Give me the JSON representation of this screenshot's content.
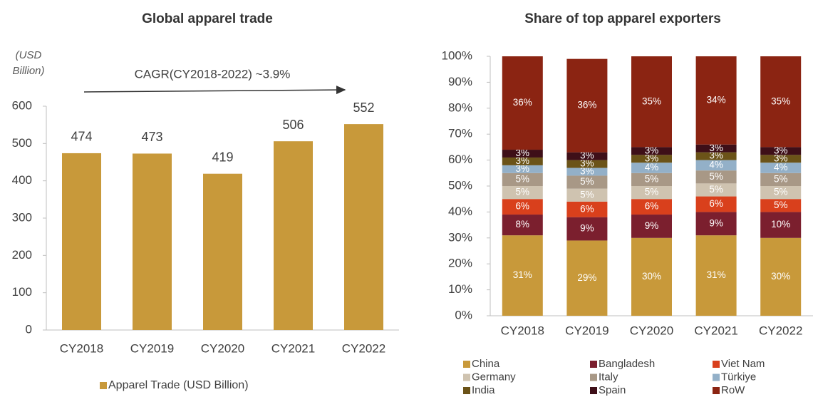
{
  "chart_data": [
    {
      "type": "bar",
      "title": "Global apparel trade",
      "y_unit": [
        "(USD",
        "Billion)"
      ],
      "annotation": "CAGR(CY2018-2022) ~3.9%",
      "categories": [
        "CY2018",
        "CY2019",
        "CY2020",
        "CY2021",
        "CY2022"
      ],
      "series": [
        {
          "name": "Apparel Trade (USD Billion)",
          "color": "#c8993a",
          "values": [
            474,
            473,
            419,
            506,
            552
          ]
        }
      ],
      "ylim": [
        0,
        600
      ],
      "yticks": [
        0,
        100,
        200,
        300,
        400,
        500,
        600
      ],
      "grid": false
    },
    {
      "type": "stacked_bar",
      "title": "Share of top apparel exporters",
      "categories": [
        "CY2018",
        "CY2019",
        "CY2020",
        "CY2021",
        "CY2022"
      ],
      "series": [
        {
          "name": "China",
          "color": "#c8993a",
          "values": [
            31,
            29,
            30,
            31,
            30
          ],
          "value_labels": [
            "31%",
            "29%",
            "30%",
            "31%",
            "30%"
          ]
        },
        {
          "name": "Bangladesh",
          "color": "#7b1f2e",
          "values": [
            8,
            9,
            9,
            9,
            10
          ],
          "value_labels": [
            "8%",
            "9%",
            "9%",
            "9%",
            "10%"
          ]
        },
        {
          "name": "Viet Nam",
          "color": "#d9401c",
          "values": [
            6,
            6,
            6,
            6,
            5
          ],
          "value_labels": [
            "6%",
            "6%",
            "6%",
            "6%",
            "5%"
          ]
        },
        {
          "name": "Germany",
          "color": "#cfc3b0",
          "values": [
            5,
            5,
            5,
            5,
            5
          ],
          "value_labels": [
            "5%",
            "5%",
            "5%",
            "5%",
            "5%"
          ]
        },
        {
          "name": "Italy",
          "color": "#a89886",
          "values": [
            5,
            5,
            5,
            5,
            5
          ],
          "value_labels": [
            "5%",
            "5%",
            "5%",
            "5%",
            "5%"
          ]
        },
        {
          "name": "Türkiye",
          "color": "#93b0c8",
          "values": [
            3,
            3,
            4,
            4,
            4
          ],
          "value_labels": [
            "3%",
            "3%",
            "4%",
            "4%",
            "4%"
          ]
        },
        {
          "name": "India",
          "color": "#6b5318",
          "values": [
            3,
            3,
            3,
            3,
            3
          ],
          "value_labels": [
            "3%",
            "3%",
            "3%",
            "3%",
            "3%"
          ]
        },
        {
          "name": "Spain",
          "color": "#3e0f18",
          "values": [
            3,
            3,
            3,
            3,
            3
          ],
          "value_labels": [
            "3%",
            "3%",
            "3%",
            "3%",
            "3%"
          ]
        },
        {
          "name": "RoW",
          "color": "#8b2412",
          "values": [
            36,
            36,
            35,
            34,
            35
          ],
          "value_labels": [
            "36%",
            "36%",
            "35%",
            "34%",
            "35%"
          ]
        }
      ],
      "ylim": [
        0,
        100
      ],
      "yticks": [
        {
          "value": 0,
          "label": "0%"
        },
        {
          "value": 10,
          "label": "10%"
        },
        {
          "value": 20,
          "label": "20%"
        },
        {
          "value": 30,
          "label": "30%"
        },
        {
          "value": 40,
          "label": "40%"
        },
        {
          "value": 50,
          "label": "50%"
        },
        {
          "value": 60,
          "label": "60%"
        },
        {
          "value": 70,
          "label": "70%"
        },
        {
          "value": 80,
          "label": "80%"
        },
        {
          "value": 90,
          "label": "90%"
        },
        {
          "value": 100,
          "label": "100%"
        }
      ],
      "grid": false
    }
  ]
}
